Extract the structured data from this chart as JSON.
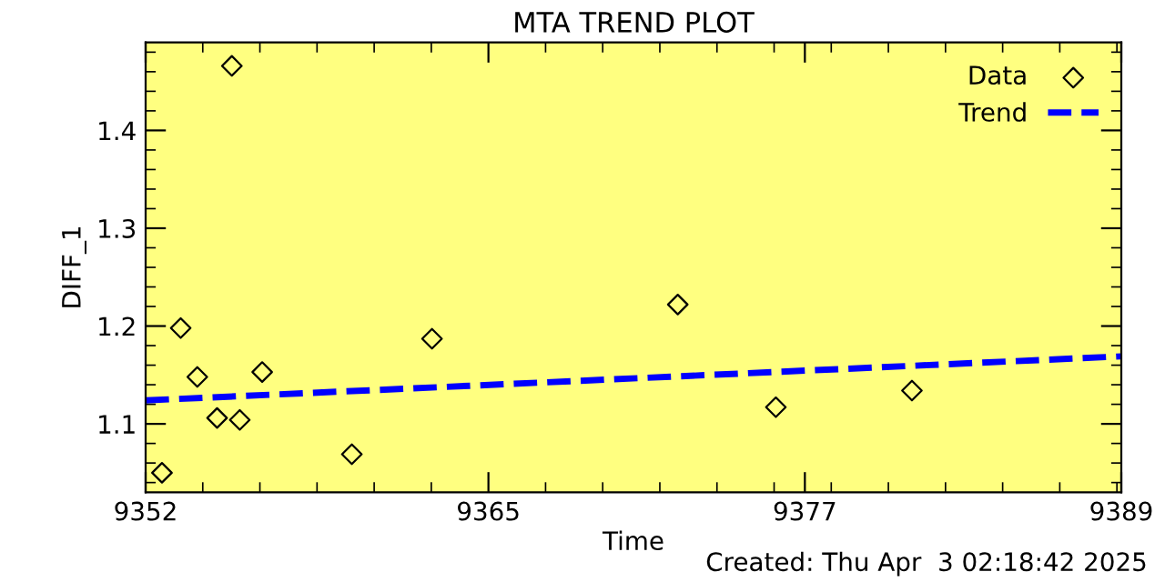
{
  "chart_data": {
    "type": "scatter",
    "title": "MTA TREND PLOT",
    "xlabel": "Time",
    "ylabel": "DIFF_1",
    "annotations": [
      "Created: Thu Apr  3 02:18:42 2025"
    ],
    "xlim": [
      9352,
      9389
    ],
    "ylim": [
      1.03,
      1.49
    ],
    "xticks": [
      9352,
      9365,
      9377,
      9389
    ],
    "yticks": [
      1.1,
      1.2,
      1.3,
      1.4
    ],
    "grid": false,
    "legend": "top right",
    "series": [
      {
        "name": "Data",
        "color": "#000000",
        "marker": "diamond",
        "x": [
          9352.62,
          9353.33,
          9353.96,
          9354.71,
          9355.27,
          9355.57,
          9356.42,
          9359.82,
          9362.86,
          9372.18,
          9375.9,
          9381.06
        ],
        "values": [
          1.05,
          1.198,
          1.148,
          1.106,
          1.466,
          1.104,
          1.153,
          1.069,
          1.187,
          1.222,
          1.117,
          1.134
        ]
      },
      {
        "name": "Trend",
        "type": "line",
        "color": "#0000ff",
        "marker": "none",
        "line_style": "dashed",
        "x": [
          9352,
          9389
        ],
        "values": [
          1.124,
          1.169
        ]
      }
    ]
  }
}
